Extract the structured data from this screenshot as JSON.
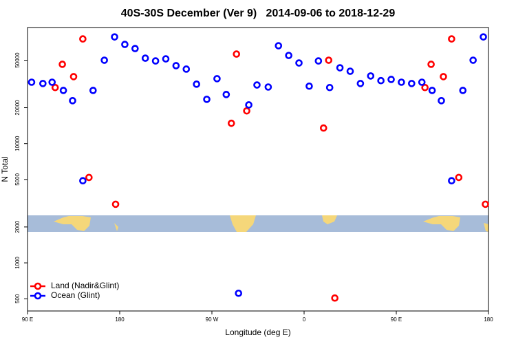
{
  "chart_data": {
    "type": "scatter",
    "title": "40S-30S December (Ver 9)   2014-09-06 to 2018-12-29",
    "x_label": "Longitude (deg E)",
    "y_label": "N Total",
    "log_y": true,
    "legend_position": "bottom-left",
    "xlim": [
      90,
      540
    ],
    "ylim": [
      395,
      94000
    ],
    "xticks": [
      {
        "value": 90,
        "label": "90 E"
      },
      {
        "value": 180,
        "label": "180"
      },
      {
        "value": 270,
        "label": "90 W"
      },
      {
        "value": 360,
        "label": "0"
      },
      {
        "value": 450,
        "label": "90 E"
      },
      {
        "value": 540,
        "label": "180"
      }
    ],
    "yticks": [
      500,
      1000,
      2000,
      5000,
      10000,
      20000,
      50000
    ],
    "series": [
      {
        "name": "Land (Nadir&Glint)",
        "color": "#ff0000",
        "x": [
          117,
          124,
          135,
          144,
          150,
          176,
          289,
          294,
          304,
          379,
          384,
          390,
          478,
          484,
          496,
          504,
          511,
          537
        ],
        "values": [
          29500,
          46200,
          36400,
          75400,
          5200,
          3100,
          14800,
          56300,
          18800,
          13500,
          50000,
          507,
          29500,
          46200,
          36400,
          75400,
          5200,
          3100
        ]
      },
      {
        "name": "Ocean (Glint)",
        "color": "#0000ff",
        "x": [
          94,
          105,
          114,
          125,
          134,
          144,
          154,
          165,
          175,
          185,
          195,
          205,
          215,
          225,
          235,
          245,
          255,
          265,
          275,
          284,
          296,
          306,
          314,
          325,
          335,
          345,
          355,
          365,
          374,
          385,
          395,
          405,
          415,
          425,
          435,
          445,
          455,
          465,
          475,
          485,
          494,
          504,
          515,
          525,
          535
        ],
        "values": [
          32700,
          31900,
          32700,
          27900,
          22900,
          4880,
          27900,
          50000,
          78400,
          67800,
          62600,
          52000,
          49300,
          51300,
          45000,
          42100,
          31500,
          23500,
          35000,
          25800,
          556,
          21100,
          31000,
          29800,
          66100,
          54800,
          47400,
          30300,
          49300,
          29500,
          43200,
          40400,
          31900,
          36900,
          33700,
          34500,
          32700,
          31900,
          32700,
          27900,
          22900,
          4880,
          27900,
          50000,
          78400
        ]
      }
    ]
  }
}
